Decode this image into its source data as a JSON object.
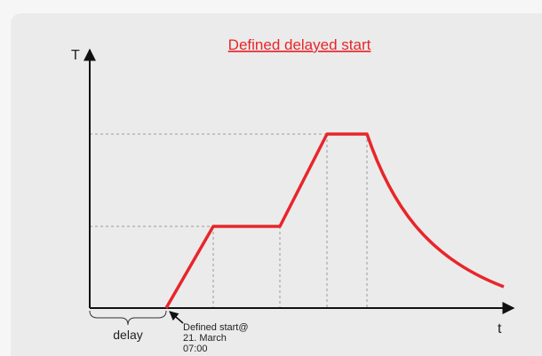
{
  "title": "Defined delayed start",
  "y_axis_label": "T",
  "x_axis_label": "t",
  "delay_label": "delay",
  "annotation": [
    "Defined start@",
    "21. March",
    "07:00"
  ]
}
